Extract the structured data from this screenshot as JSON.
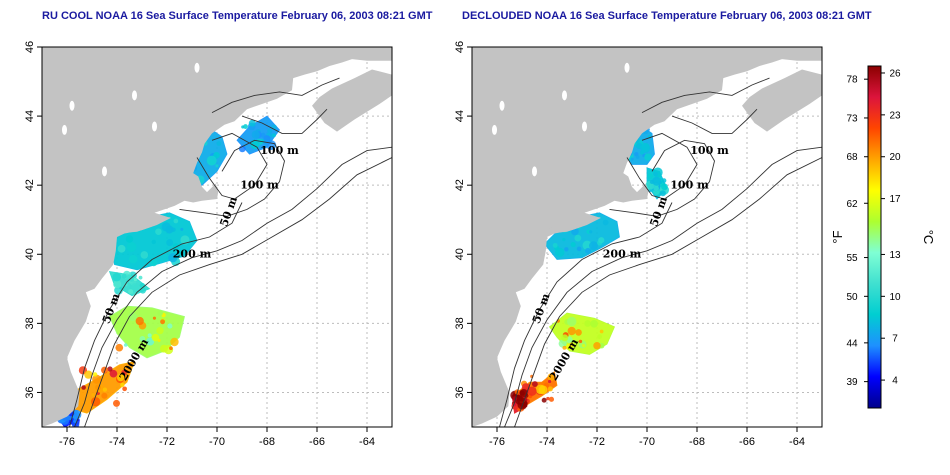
{
  "titles": {
    "left": "RU COOL NOAA 16 Sea Surface Temperature February 06, 2003 08:21 GMT",
    "right": "DECLOUDED NOAA 16 Sea Surface Temperature February 06, 2003 08:21 GMT"
  },
  "chart_data": [
    {
      "type": "heatmap",
      "title": "RU COOL NOAA 16 Sea Surface Temperature February 06, 2003 08:21 GMT",
      "xlim": [
        -77,
        -63
      ],
      "ylim": [
        35,
        46
      ],
      "x_ticks": [
        -76,
        -74,
        -72,
        -70,
        -68,
        -66,
        -64
      ],
      "y_ticks": [
        36,
        38,
        40,
        42,
        44,
        46
      ],
      "grid": true,
      "contour_labels": [
        "100 m",
        "100 m",
        "50 m",
        "200 m",
        "50 m",
        "2000 m"
      ],
      "colors": {
        "land": "#c3c3c3",
        "grid": "#bdbdbd"
      }
    },
    {
      "type": "heatmap",
      "title": "DECLOUDED NOAA 16 Sea Surface Temperature February 06, 2003 08:21 GMT",
      "xlim": [
        -77,
        -63
      ],
      "ylim": [
        35,
        46
      ],
      "x_ticks": [
        -76,
        -74,
        -72,
        -70,
        -68,
        -66,
        -64
      ],
      "y_ticks": [
        36,
        38,
        40,
        42,
        44,
        46
      ],
      "grid": true,
      "contour_labels": [
        "100 m",
        "100 m",
        "50 m",
        "200 m",
        "50 m",
        "2000 m"
      ],
      "colors": {
        "land": "#c3c3c3",
        "grid": "#bdbdbd"
      }
    }
  ],
  "colorbar": {
    "celsius_ticks": [
      4,
      7,
      10,
      13,
      17,
      20,
      23,
      26
    ],
    "fahrenheit_ticks": [
      39,
      44,
      50,
      55,
      62,
      68,
      73,
      78
    ],
    "c_unit": "°C",
    "f_unit": "°F",
    "range_c": [
      2,
      26.5
    ],
    "colors": [
      "#00008b",
      "#0000ff",
      "#1e90ff",
      "#00ced1",
      "#40e0d0",
      "#7fffd4",
      "#adff2f",
      "#ffff00",
      "#ffa500",
      "#ff4500",
      "#dc143c",
      "#8b0000"
    ]
  }
}
